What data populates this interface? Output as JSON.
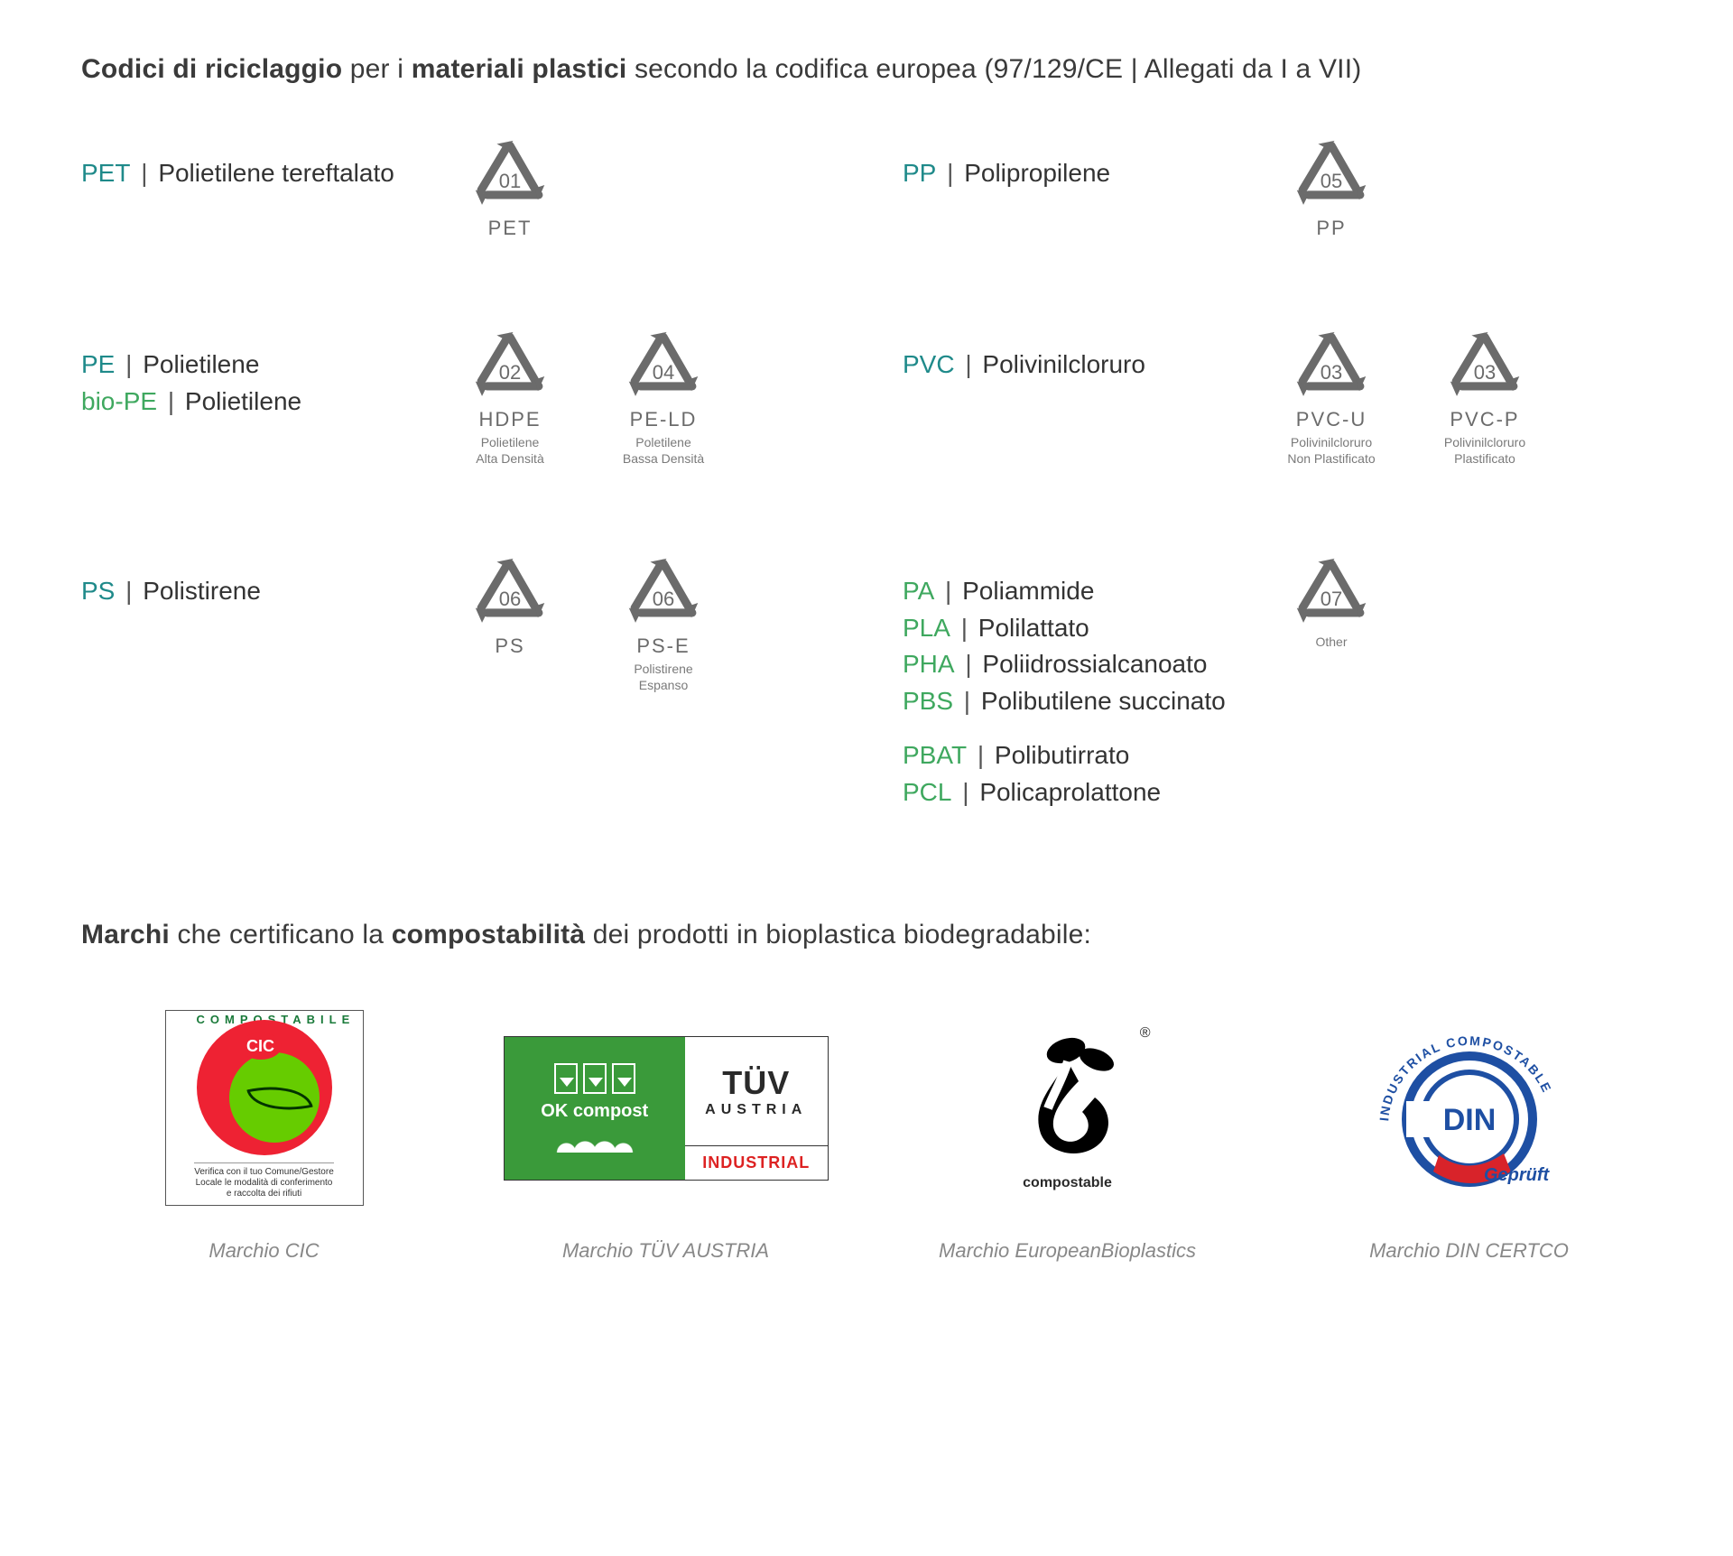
{
  "colors": {
    "teal": "#1f8a8a",
    "green": "#3fa85f",
    "symbol": "#6b6b6b",
    "text": "#2a2a2a",
    "muted": "#888888"
  },
  "title1": {
    "prefix_bold": "Codici di riciclaggio",
    "mid1": " per i ",
    "mid_bold": "materiali plastici",
    "suffix": " secondo la codifica europea (97/129/CE | Allegati da I a VII)"
  },
  "cells": [
    {
      "labels": [
        {
          "code": "PET",
          "name": "Polietilene tereftalato",
          "style": "teal"
        }
      ],
      "symbols": [
        {
          "num": "01",
          "abbr": "PET",
          "desc": ""
        }
      ]
    },
    {
      "labels": [
        {
          "code": "PP",
          "name": "Polipropilene",
          "style": "teal"
        }
      ],
      "symbols": [
        {
          "num": "05",
          "abbr": "PP",
          "desc": ""
        }
      ]
    },
    {
      "labels": [
        {
          "code": "PE",
          "name": "Polietilene",
          "style": "teal"
        },
        {
          "code": "bio-PE",
          "name": "Polietilene",
          "style": "green"
        }
      ],
      "symbols": [
        {
          "num": "02",
          "abbr": "HDPE",
          "desc": "Polietilene\nAlta Densità"
        },
        {
          "num": "04",
          "abbr": "PE-LD",
          "desc": "Poletilene\nBassa Densità"
        }
      ]
    },
    {
      "labels": [
        {
          "code": "PVC",
          "name": "Polivinilcloruro",
          "style": "teal"
        }
      ],
      "symbols": [
        {
          "num": "03",
          "abbr": "PVC-U",
          "desc": "Polivinilcloruro\nNon Plastificato"
        },
        {
          "num": "03",
          "abbr": "PVC-P",
          "desc": "Polivinilcloruro\nPlastificato"
        }
      ]
    },
    {
      "labels": [
        {
          "code": "PS",
          "name": "Polistirene",
          "style": "teal"
        }
      ],
      "symbols": [
        {
          "num": "06",
          "abbr": "PS",
          "desc": ""
        },
        {
          "num": "06",
          "abbr": "PS-E",
          "desc": "Polistirene\nEspanso"
        }
      ]
    },
    {
      "labels": [
        {
          "code": "PA",
          "name": "Poliammide",
          "style": "green"
        },
        {
          "code": "PLA",
          "name": "Polilattato",
          "style": "green"
        },
        {
          "code": "PHA",
          "name": "Poliidrossialcanoato",
          "style": "green"
        },
        {
          "code": "PBS",
          "name": "Polibutilene succinato",
          "style": "green"
        },
        {
          "gap": true
        },
        {
          "code": "PBAT",
          "name": "Polibutirrato",
          "style": "green"
        },
        {
          "code": "PCL",
          "name": "Policaprolattone",
          "style": "green"
        }
      ],
      "symbols": [
        {
          "num": "07",
          "abbr": "",
          "desc": "Other"
        }
      ]
    }
  ],
  "title2": {
    "prefix_bold": "Marchi",
    "mid1": " che certificano la ",
    "mid_bold": "compostabilità",
    "suffix": " dei prodotti in bioplastica biodegradabile:"
  },
  "certs": [
    {
      "caption": "Marchio CIC",
      "logo": {
        "type": "cic",
        "arc_text": "COMPOSTABILE",
        "badge": "CIC",
        "footer": "Verifica con il tuo Comune/Gestore\nLocale le modalità di conferimento\ne raccolta dei rifiuti"
      }
    },
    {
      "caption": "Marchio TÜV AUSTRIA",
      "logo": {
        "type": "tuv",
        "ok_text": "OK compost",
        "brand1": "TÜV",
        "brand2": "AUSTRIA",
        "industrial": "INDUSTRIAL"
      }
    },
    {
      "caption": "Marchio EuropeanBioplastics",
      "logo": {
        "type": "seedling",
        "reg": "®",
        "caption": "compostable"
      }
    },
    {
      "caption": "Marchio DIN CERTCO",
      "logo": {
        "type": "din",
        "arc_text": "INDUSTRIAL COMPOSTABLE",
        "center": "DIN",
        "gepruft": "Geprüft",
        "ring_color": "#1e4fa3",
        "accent_color": "#d8232a"
      }
    }
  ]
}
